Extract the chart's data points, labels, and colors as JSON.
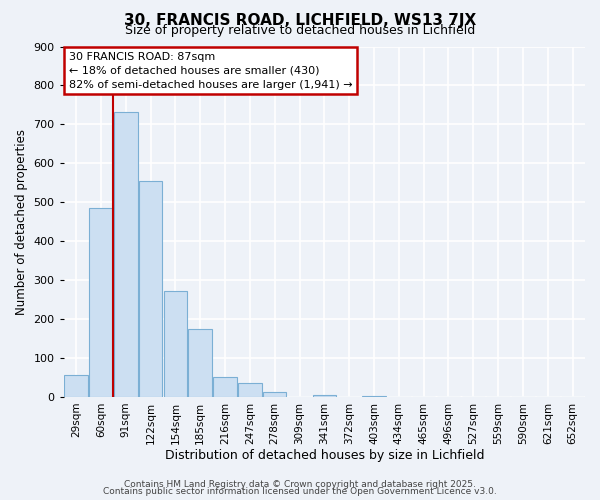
{
  "title": "30, FRANCIS ROAD, LICHFIELD, WS13 7JX",
  "subtitle": "Size of property relative to detached houses in Lichfield",
  "xlabel": "Distribution of detached houses by size in Lichfield",
  "ylabel": "Number of detached properties",
  "footer_line1": "Contains HM Land Registry data © Crown copyright and database right 2025.",
  "footer_line2": "Contains public sector information licensed under the Open Government Licence v3.0.",
  "annotation_line1": "30 FRANCIS ROAD: 87sqm",
  "annotation_line2": "← 18% of detached houses are smaller (430)",
  "annotation_line3": "82% of semi-detached houses are larger (1,941) →",
  "bar_labels": [
    "29sqm",
    "60sqm",
    "91sqm",
    "122sqm",
    "154sqm",
    "185sqm",
    "216sqm",
    "247sqm",
    "278sqm",
    "309sqm",
    "341sqm",
    "372sqm",
    "403sqm",
    "434sqm",
    "465sqm",
    "496sqm",
    "527sqm",
    "559sqm",
    "590sqm",
    "621sqm",
    "652sqm"
  ],
  "bar_values": [
    57,
    484,
    731,
    554,
    272,
    175,
    50,
    35,
    14,
    0,
    5,
    0,
    2,
    0,
    0,
    0,
    0,
    0,
    0,
    0,
    0
  ],
  "bar_color": "#ccdff2",
  "bar_edge_color": "#7bafd4",
  "vline_color": "#c00000",
  "ylim": [
    0,
    900
  ],
  "yticks": [
    0,
    100,
    200,
    300,
    400,
    500,
    600,
    700,
    800,
    900
  ],
  "bg_color": "#eef2f8",
  "grid_color": "#ffffff",
  "annotation_box_color": "#c00000"
}
